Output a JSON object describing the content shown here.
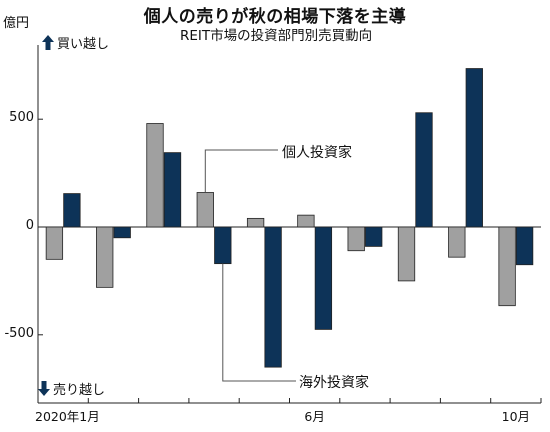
{
  "chart_data": {
    "type": "bar",
    "title": "個人の売りが秋の相場下落を主導",
    "subtitle": "REIT市場の投資部門別売買動向",
    "unit": "億円",
    "buy_label": "買い越し",
    "sell_label": "売り越し",
    "x_tick_labels": [
      "2020年1月",
      "6月",
      "10月"
    ],
    "y_ticks": [
      500,
      0,
      -500
    ],
    "y_tick_labels": [
      "500",
      "0",
      "-500"
    ],
    "ylim": [
      -820,
      820
    ],
    "categories": [
      "1",
      "2",
      "3",
      "4",
      "5",
      "6",
      "7",
      "8",
      "9",
      "10"
    ],
    "series": [
      {
        "name": "個人投資家",
        "color": "#a0a0a0",
        "values": [
          -150,
          -280,
          480,
          160,
          40,
          55,
          -110,
          -250,
          -140,
          -365
        ]
      },
      {
        "name": "海外投資家",
        "color": "#0d3358",
        "values": [
          155,
          -50,
          345,
          -170,
          -650,
          -475,
          -90,
          530,
          735,
          -175
        ]
      }
    ],
    "grid": false
  }
}
